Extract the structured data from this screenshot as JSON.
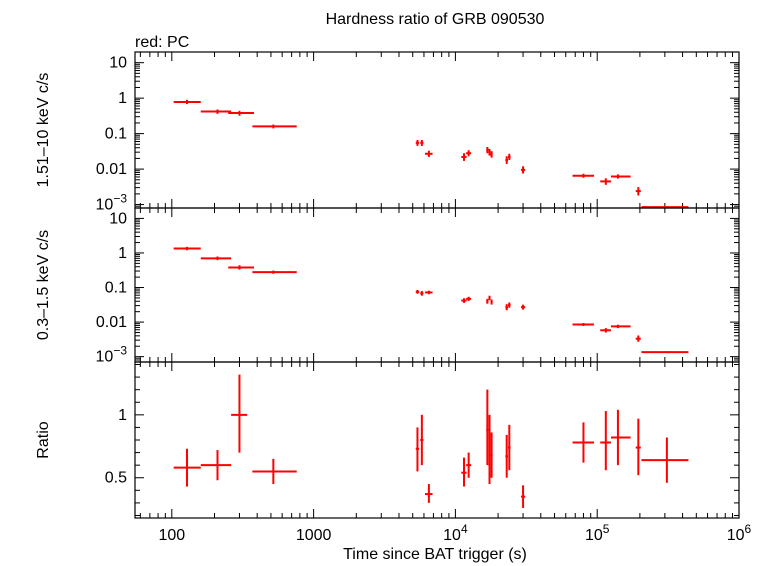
{
  "chart_data": {
    "type": "scatter",
    "title": "Hardness ratio of GRB 090530",
    "xlabel": "Time since BAT trigger (s)",
    "xscale": "log",
    "xlim": [
      55,
      1000000
    ],
    "series_color": "#ff0000",
    "x_ticks": [
      {
        "value": 100,
        "base": "100",
        "exp": ""
      },
      {
        "value": 1000,
        "base": "1000",
        "exp": ""
      },
      {
        "value": 10000,
        "base": "10",
        "exp": "4"
      },
      {
        "value": 100000,
        "base": "10",
        "exp": "5"
      },
      {
        "value": 1000000,
        "base": "10",
        "exp": "6"
      }
    ],
    "panels": [
      {
        "id": "hard",
        "legend": "red: PC",
        "ylabel": "1.51–10 keV c/s",
        "yscale": "log",
        "ylim": [
          0.0008,
          20
        ],
        "y_ticks": [
          {
            "value": 10,
            "base": "10",
            "exp": ""
          },
          {
            "value": 1,
            "base": "1",
            "exp": ""
          },
          {
            "value": 0.1,
            "base": "0.1",
            "exp": ""
          },
          {
            "value": 0.01,
            "base": "0.01",
            "exp": ""
          },
          {
            "value": 0.001,
            "base": "10",
            "exp": "−3"
          }
        ],
        "points": [
          {
            "x": 128,
            "xlo": 103,
            "xhi": 160,
            "y": 0.78,
            "ylo": 0.68,
            "yhi": 0.9
          },
          {
            "x": 210,
            "xlo": 160,
            "xhi": 262,
            "y": 0.42,
            "ylo": 0.36,
            "yhi": 0.48
          },
          {
            "x": 300,
            "xlo": 250,
            "xhi": 380,
            "y": 0.38,
            "ylo": 0.32,
            "yhi": 0.44
          },
          {
            "x": 520,
            "xlo": 370,
            "xhi": 760,
            "y": 0.16,
            "ylo": 0.14,
            "yhi": 0.18
          },
          {
            "x": 5400,
            "xlo": 5250,
            "xhi": 5550,
            "y": 0.055,
            "ylo": 0.045,
            "yhi": 0.066
          },
          {
            "x": 5800,
            "xlo": 5650,
            "xhi": 5950,
            "y": 0.055,
            "ylo": 0.045,
            "yhi": 0.066
          },
          {
            "x": 6500,
            "xlo": 6100,
            "xhi": 6900,
            "y": 0.027,
            "ylo": 0.022,
            "yhi": 0.033
          },
          {
            "x": 11500,
            "xlo": 11000,
            "xhi": 12000,
            "y": 0.022,
            "ylo": 0.017,
            "yhi": 0.028
          },
          {
            "x": 12400,
            "xlo": 11900,
            "xhi": 12900,
            "y": 0.028,
            "ylo": 0.023,
            "yhi": 0.034
          },
          {
            "x": 16800,
            "xlo": 16500,
            "xhi": 17100,
            "y": 0.035,
            "ylo": 0.028,
            "yhi": 0.042
          },
          {
            "x": 17400,
            "xlo": 17100,
            "xhi": 17700,
            "y": 0.03,
            "ylo": 0.024,
            "yhi": 0.037
          },
          {
            "x": 18000,
            "xlo": 17700,
            "xhi": 18300,
            "y": 0.026,
            "ylo": 0.021,
            "yhi": 0.032
          },
          {
            "x": 23000,
            "xlo": 22500,
            "xhi": 23500,
            "y": 0.018,
            "ylo": 0.014,
            "yhi": 0.023
          },
          {
            "x": 24000,
            "xlo": 23500,
            "xhi": 24500,
            "y": 0.022,
            "ylo": 0.018,
            "yhi": 0.027
          },
          {
            "x": 30000,
            "xlo": 29000,
            "xhi": 31000,
            "y": 0.0095,
            "ylo": 0.0075,
            "yhi": 0.012
          },
          {
            "x": 80000,
            "xlo": 67000,
            "xhi": 95000,
            "y": 0.0065,
            "ylo": 0.0057,
            "yhi": 0.0074
          },
          {
            "x": 115000,
            "xlo": 105000,
            "xhi": 125000,
            "y": 0.0045,
            "ylo": 0.0036,
            "yhi": 0.0055
          },
          {
            "x": 140000,
            "xlo": 125000,
            "xhi": 172000,
            "y": 0.0062,
            "ylo": 0.0054,
            "yhi": 0.0071
          },
          {
            "x": 195000,
            "xlo": 187000,
            "xhi": 203000,
            "y": 0.0024,
            "ylo": 0.0018,
            "yhi": 0.0031
          },
          {
            "x": 310000,
            "xlo": 205000,
            "xhi": 440000,
            "y": 0.00085,
            "ylo": 0.00081,
            "yhi": 0.00089
          }
        ]
      },
      {
        "id": "soft",
        "legend": "",
        "ylabel": "0.3–1.5 keV c/s",
        "yscale": "log",
        "ylim": [
          0.0007,
          20
        ],
        "y_ticks": [
          {
            "value": 10,
            "base": "10",
            "exp": ""
          },
          {
            "value": 1,
            "base": "1",
            "exp": ""
          },
          {
            "value": 0.1,
            "base": "0.1",
            "exp": ""
          },
          {
            "value": 0.01,
            "base": "0.01",
            "exp": ""
          },
          {
            "value": 0.001,
            "base": "10",
            "exp": "−3"
          }
        ],
        "points": [
          {
            "x": 128,
            "xlo": 103,
            "xhi": 160,
            "y": 1.35,
            "ylo": 1.2,
            "yhi": 1.5
          },
          {
            "x": 210,
            "xlo": 160,
            "xhi": 262,
            "y": 0.7,
            "ylo": 0.62,
            "yhi": 0.79
          },
          {
            "x": 300,
            "xlo": 250,
            "xhi": 380,
            "y": 0.38,
            "ylo": 0.33,
            "yhi": 0.44
          },
          {
            "x": 520,
            "xlo": 370,
            "xhi": 760,
            "y": 0.28,
            "ylo": 0.25,
            "yhi": 0.31
          },
          {
            "x": 5400,
            "xlo": 5250,
            "xhi": 5550,
            "y": 0.075,
            "ylo": 0.066,
            "yhi": 0.085
          },
          {
            "x": 5800,
            "xlo": 5650,
            "xhi": 5950,
            "y": 0.068,
            "ylo": 0.058,
            "yhi": 0.079
          },
          {
            "x": 6500,
            "xlo": 6100,
            "xhi": 6900,
            "y": 0.072,
            "ylo": 0.064,
            "yhi": 0.081
          },
          {
            "x": 11500,
            "xlo": 11000,
            "xhi": 12000,
            "y": 0.042,
            "ylo": 0.036,
            "yhi": 0.049
          },
          {
            "x": 12400,
            "xlo": 11900,
            "xhi": 12900,
            "y": 0.047,
            "ylo": 0.041,
            "yhi": 0.054
          },
          {
            "x": 16800,
            "xlo": 16500,
            "xhi": 17100,
            "y": 0.04,
            "ylo": 0.034,
            "yhi": 0.047
          },
          {
            "x": 17400,
            "xlo": 17100,
            "xhi": 17700,
            "y": 0.05,
            "ylo": 0.043,
            "yhi": 0.058
          },
          {
            "x": 18000,
            "xlo": 17700,
            "xhi": 18300,
            "y": 0.038,
            "ylo": 0.032,
            "yhi": 0.045
          },
          {
            "x": 23000,
            "xlo": 22500,
            "xhi": 23500,
            "y": 0.027,
            "ylo": 0.022,
            "yhi": 0.033
          },
          {
            "x": 24000,
            "xlo": 23500,
            "xhi": 24500,
            "y": 0.031,
            "ylo": 0.026,
            "yhi": 0.037
          },
          {
            "x": 30000,
            "xlo": 29000,
            "xhi": 31000,
            "y": 0.027,
            "ylo": 0.023,
            "yhi": 0.032
          },
          {
            "x": 80000,
            "xlo": 67000,
            "xhi": 95000,
            "y": 0.0085,
            "ylo": 0.0077,
            "yhi": 0.0094
          },
          {
            "x": 115000,
            "xlo": 105000,
            "xhi": 125000,
            "y": 0.0058,
            "ylo": 0.005,
            "yhi": 0.0067
          },
          {
            "x": 140000,
            "xlo": 125000,
            "xhi": 172000,
            "y": 0.0075,
            "ylo": 0.0067,
            "yhi": 0.0084
          },
          {
            "x": 195000,
            "xlo": 187000,
            "xhi": 203000,
            "y": 0.0033,
            "ylo": 0.0027,
            "yhi": 0.0041
          },
          {
            "x": 310000,
            "xlo": 205000,
            "xhi": 440000,
            "y": 0.00135,
            "ylo": 0.00127,
            "yhi": 0.00143
          }
        ]
      },
      {
        "id": "ratio",
        "legend": "",
        "ylabel": "Ratio",
        "yscale": "linear",
        "ylim": [
          0.18,
          1.42
        ],
        "y_ticks": [
          {
            "value": 1,
            "base": "1",
            "exp": ""
          },
          {
            "value": 0.5,
            "base": "0.5",
            "exp": ""
          }
        ],
        "points": [
          {
            "x": 128,
            "xlo": 103,
            "xhi": 160,
            "y": 0.58,
            "ylo": 0.43,
            "yhi": 0.73
          },
          {
            "x": 210,
            "xlo": 160,
            "xhi": 262,
            "y": 0.6,
            "ylo": 0.48,
            "yhi": 0.72
          },
          {
            "x": 300,
            "xlo": 262,
            "xhi": 340,
            "y": 1.0,
            "ylo": 0.7,
            "yhi": 1.32
          },
          {
            "x": 520,
            "xlo": 370,
            "xhi": 760,
            "y": 0.55,
            "ylo": 0.45,
            "yhi": 0.65
          },
          {
            "x": 5400,
            "xlo": 5250,
            "xhi": 5550,
            "y": 0.73,
            "ylo": 0.55,
            "yhi": 0.9
          },
          {
            "x": 5800,
            "xlo": 5650,
            "xhi": 5950,
            "y": 0.8,
            "ylo": 0.6,
            "yhi": 1.0
          },
          {
            "x": 6500,
            "xlo": 6100,
            "xhi": 6900,
            "y": 0.37,
            "ylo": 0.3,
            "yhi": 0.45
          },
          {
            "x": 11500,
            "xlo": 11000,
            "xhi": 12000,
            "y": 0.54,
            "ylo": 0.43,
            "yhi": 0.66
          },
          {
            "x": 12400,
            "xlo": 11900,
            "xhi": 12900,
            "y": 0.6,
            "ylo": 0.5,
            "yhi": 0.7
          },
          {
            "x": 16800,
            "xlo": 16500,
            "xhi": 17100,
            "y": 0.88,
            "ylo": 0.6,
            "yhi": 1.2
          },
          {
            "x": 17400,
            "xlo": 17100,
            "xhi": 17700,
            "y": 0.6,
            "ylo": 0.45,
            "yhi": 1.0
          },
          {
            "x": 18000,
            "xlo": 17700,
            "xhi": 18300,
            "y": 0.68,
            "ylo": 0.5,
            "yhi": 0.86
          },
          {
            "x": 23000,
            "xlo": 22500,
            "xhi": 23500,
            "y": 0.67,
            "ylo": 0.5,
            "yhi": 0.84
          },
          {
            "x": 24000,
            "xlo": 23500,
            "xhi": 24500,
            "y": 0.74,
            "ylo": 0.56,
            "yhi": 0.92
          },
          {
            "x": 30000,
            "xlo": 29000,
            "xhi": 31000,
            "y": 0.35,
            "ylo": 0.26,
            "yhi": 0.44
          },
          {
            "x": 80000,
            "xlo": 67000,
            "xhi": 95000,
            "y": 0.78,
            "ylo": 0.62,
            "yhi": 0.94
          },
          {
            "x": 115000,
            "xlo": 105000,
            "xhi": 125000,
            "y": 0.78,
            "ylo": 0.56,
            "yhi": 1.03
          },
          {
            "x": 140000,
            "xlo": 125000,
            "xhi": 172000,
            "y": 0.82,
            "ylo": 0.6,
            "yhi": 1.04
          },
          {
            "x": 195000,
            "xlo": 187000,
            "xhi": 203000,
            "y": 0.74,
            "ylo": 0.52,
            "yhi": 0.97
          },
          {
            "x": 310000,
            "xlo": 205000,
            "xhi": 440000,
            "y": 0.64,
            "ylo": 0.46,
            "yhi": 0.82
          }
        ]
      }
    ]
  }
}
